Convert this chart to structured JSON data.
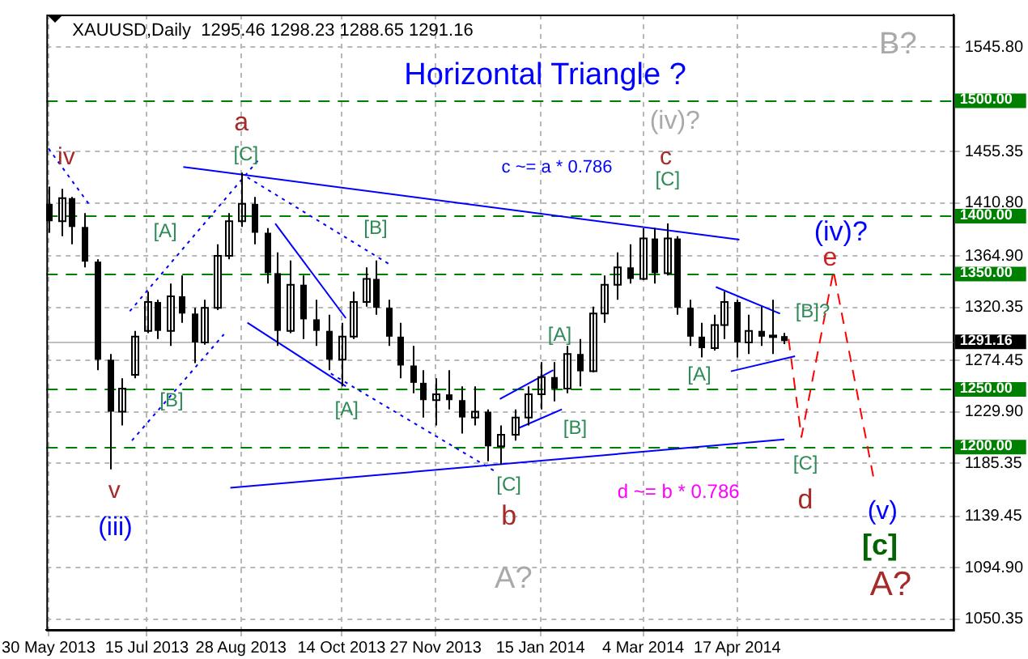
{
  "chart_data": {
    "type": "candlestick",
    "title": "XAUUSD,Daily  1295.46 1298.23 1288.65 1291.16",
    "subtitle": "Horizontal Triangle ?",
    "color": "#000000",
    "x": [
      "2013-05-30",
      "2013-06-05",
      "2013-06-10",
      "2013-06-16",
      "2013-06-22",
      "2013-06-28",
      "2013-07-03",
      "2013-07-09",
      "2013-07-15",
      "2013-07-20",
      "2013-07-26",
      "2013-07-31",
      "2013-08-06",
      "2013-08-11",
      "2013-08-17",
      "2013-08-22",
      "2013-08-28",
      "2013-09-03",
      "2013-09-09",
      "2013-09-14",
      "2013-09-20",
      "2013-09-26",
      "2013-10-02",
      "2013-10-08",
      "2013-10-14",
      "2013-10-19",
      "2013-10-25",
      "2013-10-30",
      "2013-11-05",
      "2013-11-10",
      "2013-11-16",
      "2013-11-21",
      "2013-11-27",
      "2013-12-03",
      "2013-12-09",
      "2013-12-15",
      "2013-12-21",
      "2013-12-27",
      "2014-01-03",
      "2014-01-09",
      "2014-01-15",
      "2014-01-21",
      "2014-01-27",
      "2014-02-02",
      "2014-02-08",
      "2014-02-14",
      "2014-02-20",
      "2014-02-26",
      "2014-03-04",
      "2014-03-09",
      "2014-03-15",
      "2014-03-20",
      "2014-03-26",
      "2014-03-31",
      "2014-04-06",
      "2014-04-11",
      "2014-04-17",
      "2014-04-22",
      "2014-04-28",
      "2014-05-03",
      "2014-05-09"
    ],
    "ohlc": [
      [
        1410,
        1425,
        1385,
        1395
      ],
      [
        1395,
        1423,
        1382,
        1415
      ],
      [
        1415,
        1416,
        1375,
        1390
      ],
      [
        1390,
        1402,
        1355,
        1360
      ],
      [
        1360,
        1362,
        1266,
        1275
      ],
      [
        1275,
        1280,
        1180,
        1230
      ],
      [
        1230,
        1259,
        1218,
        1250
      ],
      [
        1262,
        1300,
        1259,
        1295
      ],
      [
        1300,
        1334,
        1298,
        1325
      ],
      [
        1325,
        1327,
        1293,
        1300
      ],
      [
        1300,
        1341,
        1287,
        1330
      ],
      [
        1330,
        1348,
        1307,
        1315
      ],
      [
        1315,
        1320,
        1272,
        1290
      ],
      [
        1290,
        1327,
        1288,
        1320
      ],
      [
        1320,
        1375,
        1318,
        1365
      ],
      [
        1365,
        1402,
        1362,
        1395
      ],
      [
        1395,
        1437,
        1390,
        1410
      ],
      [
        1410,
        1416,
        1375,
        1385
      ],
      [
        1385,
        1389,
        1341,
        1350
      ],
      [
        1350,
        1368,
        1287,
        1300
      ],
      [
        1300,
        1361,
        1298,
        1340
      ],
      [
        1340,
        1348,
        1293,
        1310
      ],
      [
        1310,
        1327,
        1287,
        1300
      ],
      [
        1300,
        1314,
        1266,
        1275
      ],
      [
        1275,
        1307,
        1252,
        1295
      ],
      [
        1295,
        1334,
        1293,
        1325
      ],
      [
        1325,
        1355,
        1321,
        1345
      ],
      [
        1345,
        1361,
        1314,
        1320
      ],
      [
        1320,
        1327,
        1287,
        1295
      ],
      [
        1295,
        1307,
        1259,
        1270
      ],
      [
        1270,
        1287,
        1246,
        1255
      ],
      [
        1255,
        1266,
        1225,
        1240
      ],
      [
        1240,
        1259,
        1218,
        1245
      ],
      [
        1245,
        1266,
        1232,
        1240
      ],
      [
        1240,
        1252,
        1211,
        1225
      ],
      [
        1225,
        1252,
        1218,
        1230
      ],
      [
        1230,
        1232,
        1187,
        1200
      ],
      [
        1200,
        1218,
        1184,
        1210
      ],
      [
        1210,
        1232,
        1205,
        1225
      ],
      [
        1225,
        1252,
        1218,
        1245
      ],
      [
        1245,
        1273,
        1232,
        1260
      ],
      [
        1260,
        1273,
        1239,
        1250
      ],
      [
        1250,
        1287,
        1246,
        1280
      ],
      [
        1280,
        1293,
        1252,
        1265
      ],
      [
        1265,
        1321,
        1264,
        1315
      ],
      [
        1315,
        1348,
        1307,
        1340
      ],
      [
        1340,
        1368,
        1327,
        1355
      ],
      [
        1355,
        1375,
        1341,
        1345
      ],
      [
        1345,
        1389,
        1344,
        1380
      ],
      [
        1380,
        1389,
        1341,
        1350
      ],
      [
        1350,
        1393,
        1348,
        1380
      ],
      [
        1380,
        1382,
        1314,
        1320
      ],
      [
        1320,
        1327,
        1287,
        1295
      ],
      [
        1295,
        1307,
        1277,
        1285
      ],
      [
        1285,
        1314,
        1283,
        1305
      ],
      [
        1305,
        1334,
        1293,
        1325
      ],
      [
        1325,
        1327,
        1277,
        1290
      ],
      [
        1290,
        1314,
        1280,
        1300
      ],
      [
        1300,
        1321,
        1287,
        1295
      ],
      [
        1295,
        1327,
        1280,
        1296
      ],
      [
        1295.46,
        1298.23,
        1288.65,
        1291.16
      ]
    ],
    "series": [
      {
        "type": "line",
        "color": "#0000ff",
        "line_style": "solid",
        "x": [
          "2013-08-01",
          "2014-04-18"
        ],
        "values": [
          1442,
          1379
        ]
      },
      {
        "type": "line",
        "color": "#0000ff",
        "line_style": "solid",
        "x": [
          "2013-08-23",
          "2014-05-09"
        ],
        "values": [
          1164,
          1206
        ]
      },
      {
        "type": "line",
        "color": "#0000ff",
        "line_style": "solid",
        "x": [
          "2014-04-07",
          "2014-05-07"
        ],
        "values": [
          1338,
          1315
        ]
      },
      {
        "type": "line",
        "color": "#0000ff",
        "line_style": "solid",
        "x": [
          "2014-04-14",
          "2014-05-14"
        ],
        "values": [
          1265,
          1278
        ]
      },
      {
        "type": "line",
        "color": "#0000ff",
        "line_style": "solid",
        "x": [
          "2013-12-27",
          "2014-01-21"
        ],
        "values": [
          1241,
          1266
        ]
      },
      {
        "type": "line",
        "color": "#0000ff",
        "line_style": "solid",
        "x": [
          "2014-01-05",
          "2014-01-25"
        ],
        "values": [
          1216,
          1232
        ]
      },
      {
        "type": "line",
        "color": "#0000ff",
        "line_style": "solid",
        "x": [
          "2013-09-13",
          "2013-10-16"
        ],
        "values": [
          1393,
          1311
        ]
      },
      {
        "type": "line",
        "color": "#0000ff",
        "line_style": "solid",
        "x": [
          "2013-08-31",
          "2013-10-16"
        ],
        "values": [
          1307,
          1252
        ]
      },
      {
        "type": "line",
        "color": "#0000ff",
        "line_style": "dotted",
        "x": [
          "2013-05-30",
          "2013-06-19"
        ],
        "values": [
          1458,
          1407
        ]
      },
      {
        "type": "line",
        "color": "#0000ff",
        "line_style": "dotted",
        "x": [
          "2013-07-08",
          "2013-08-20"
        ],
        "values": [
          1205,
          1297
        ]
      },
      {
        "type": "line",
        "color": "#0000ff",
        "line_style": "dotted",
        "x": [
          "2013-07-07",
          "2013-09-06"
        ],
        "values": [
          1317,
          1450
        ]
      },
      {
        "type": "line",
        "color": "#0000ff",
        "line_style": "dotted",
        "x": [
          "2013-08-31",
          "2013-11-06"
        ],
        "values": [
          1433,
          1357
        ]
      },
      {
        "type": "line",
        "color": "#0000ff",
        "line_style": "dotted",
        "x": [
          "2013-10-09",
          "2013-12-26"
        ],
        "values": [
          1263,
          1177
        ]
      },
      {
        "type": "line",
        "color": "#ff0000",
        "line_style": "dashed",
        "x": [
          "2014-05-11",
          "2014-05-17",
          "2014-06-01",
          "2014-06-20"
        ],
        "values": [
          1293,
          1208,
          1352,
          1170
        ]
      }
    ],
    "xlim": [
      "2013-05-29",
      "2014-07-27"
    ],
    "xticks": [
      {
        "value": "2013-05-30",
        "label": "30 May 2013"
      },
      {
        "value": "2013-07-15",
        "label": "15 Jul 2013"
      },
      {
        "value": "2013-08-28",
        "label": "28 Aug 2013"
      },
      {
        "value": "2013-10-14",
        "label": "14 Oct 2013"
      },
      {
        "value": "2013-11-27",
        "label": "27 Nov 2013"
      },
      {
        "value": "2014-01-15",
        "label": "15 Jan 2014"
      },
      {
        "value": "2014-03-04",
        "label": "4 Mar 2014"
      },
      {
        "value": "2014-04-17",
        "label": "17 Apr 2014"
      }
    ],
    "ylim": [
      1041,
      1574
    ],
    "yticks": [
      {
        "value": 1050.35,
        "label": "1050.35"
      },
      {
        "value": 1094.9,
        "label": "1094.90"
      },
      {
        "value": 1139.45,
        "label": "1139.45"
      },
      {
        "value": 1185.35,
        "label": "1185.35"
      },
      {
        "value": 1229.9,
        "label": "1229.90"
      },
      {
        "value": 1274.45,
        "label": "1274.45"
      },
      {
        "value": 1320.35,
        "label": "1320.35"
      },
      {
        "value": 1364.9,
        "label": "1364.90"
      },
      {
        "value": 1410.8,
        "label": "1410.80"
      },
      {
        "value": 1455.35,
        "label": "1455.35"
      },
      {
        "value": 1545.8,
        "label": "1545.80"
      }
    ],
    "grid": true,
    "ref_lines": [
      {
        "axis": "y",
        "value": 1500,
        "label": "1500.00",
        "color": "#008000",
        "line_style": "dashed"
      },
      {
        "axis": "y",
        "value": 1400,
        "label": "1400.00",
        "color": "#008000",
        "line_style": "dashed"
      },
      {
        "axis": "y",
        "value": 1350,
        "label": "1350.00",
        "color": "#008000",
        "line_style": "dashed"
      },
      {
        "axis": "y",
        "value": 1250,
        "label": "1250.00",
        "color": "#008000",
        "line_style": "dashed"
      },
      {
        "axis": "y",
        "value": 1200,
        "label": "1200.00",
        "color": "#008000",
        "line_style": "dashed"
      },
      {
        "axis": "y",
        "value": 1291.16,
        "label": "1291.16",
        "color": "#c0c0c0",
        "line_style": "solid"
      }
    ],
    "annotations": [
      "iv",
      "a",
      "[C]",
      "[A]",
      "[B]",
      "[B]",
      "[A]",
      "v",
      "(iii)",
      "[C]",
      "b",
      "A?",
      "c ~= a * 0.786",
      "(iv)?",
      "c",
      "[C]",
      "[A]",
      "[B]",
      "[A]",
      "[B]?",
      "(iv)?",
      "e",
      "[C]",
      "d",
      "d ~= b * 0.786",
      "(v)",
      "[c]",
      "A?",
      "B?"
    ]
  }
}
